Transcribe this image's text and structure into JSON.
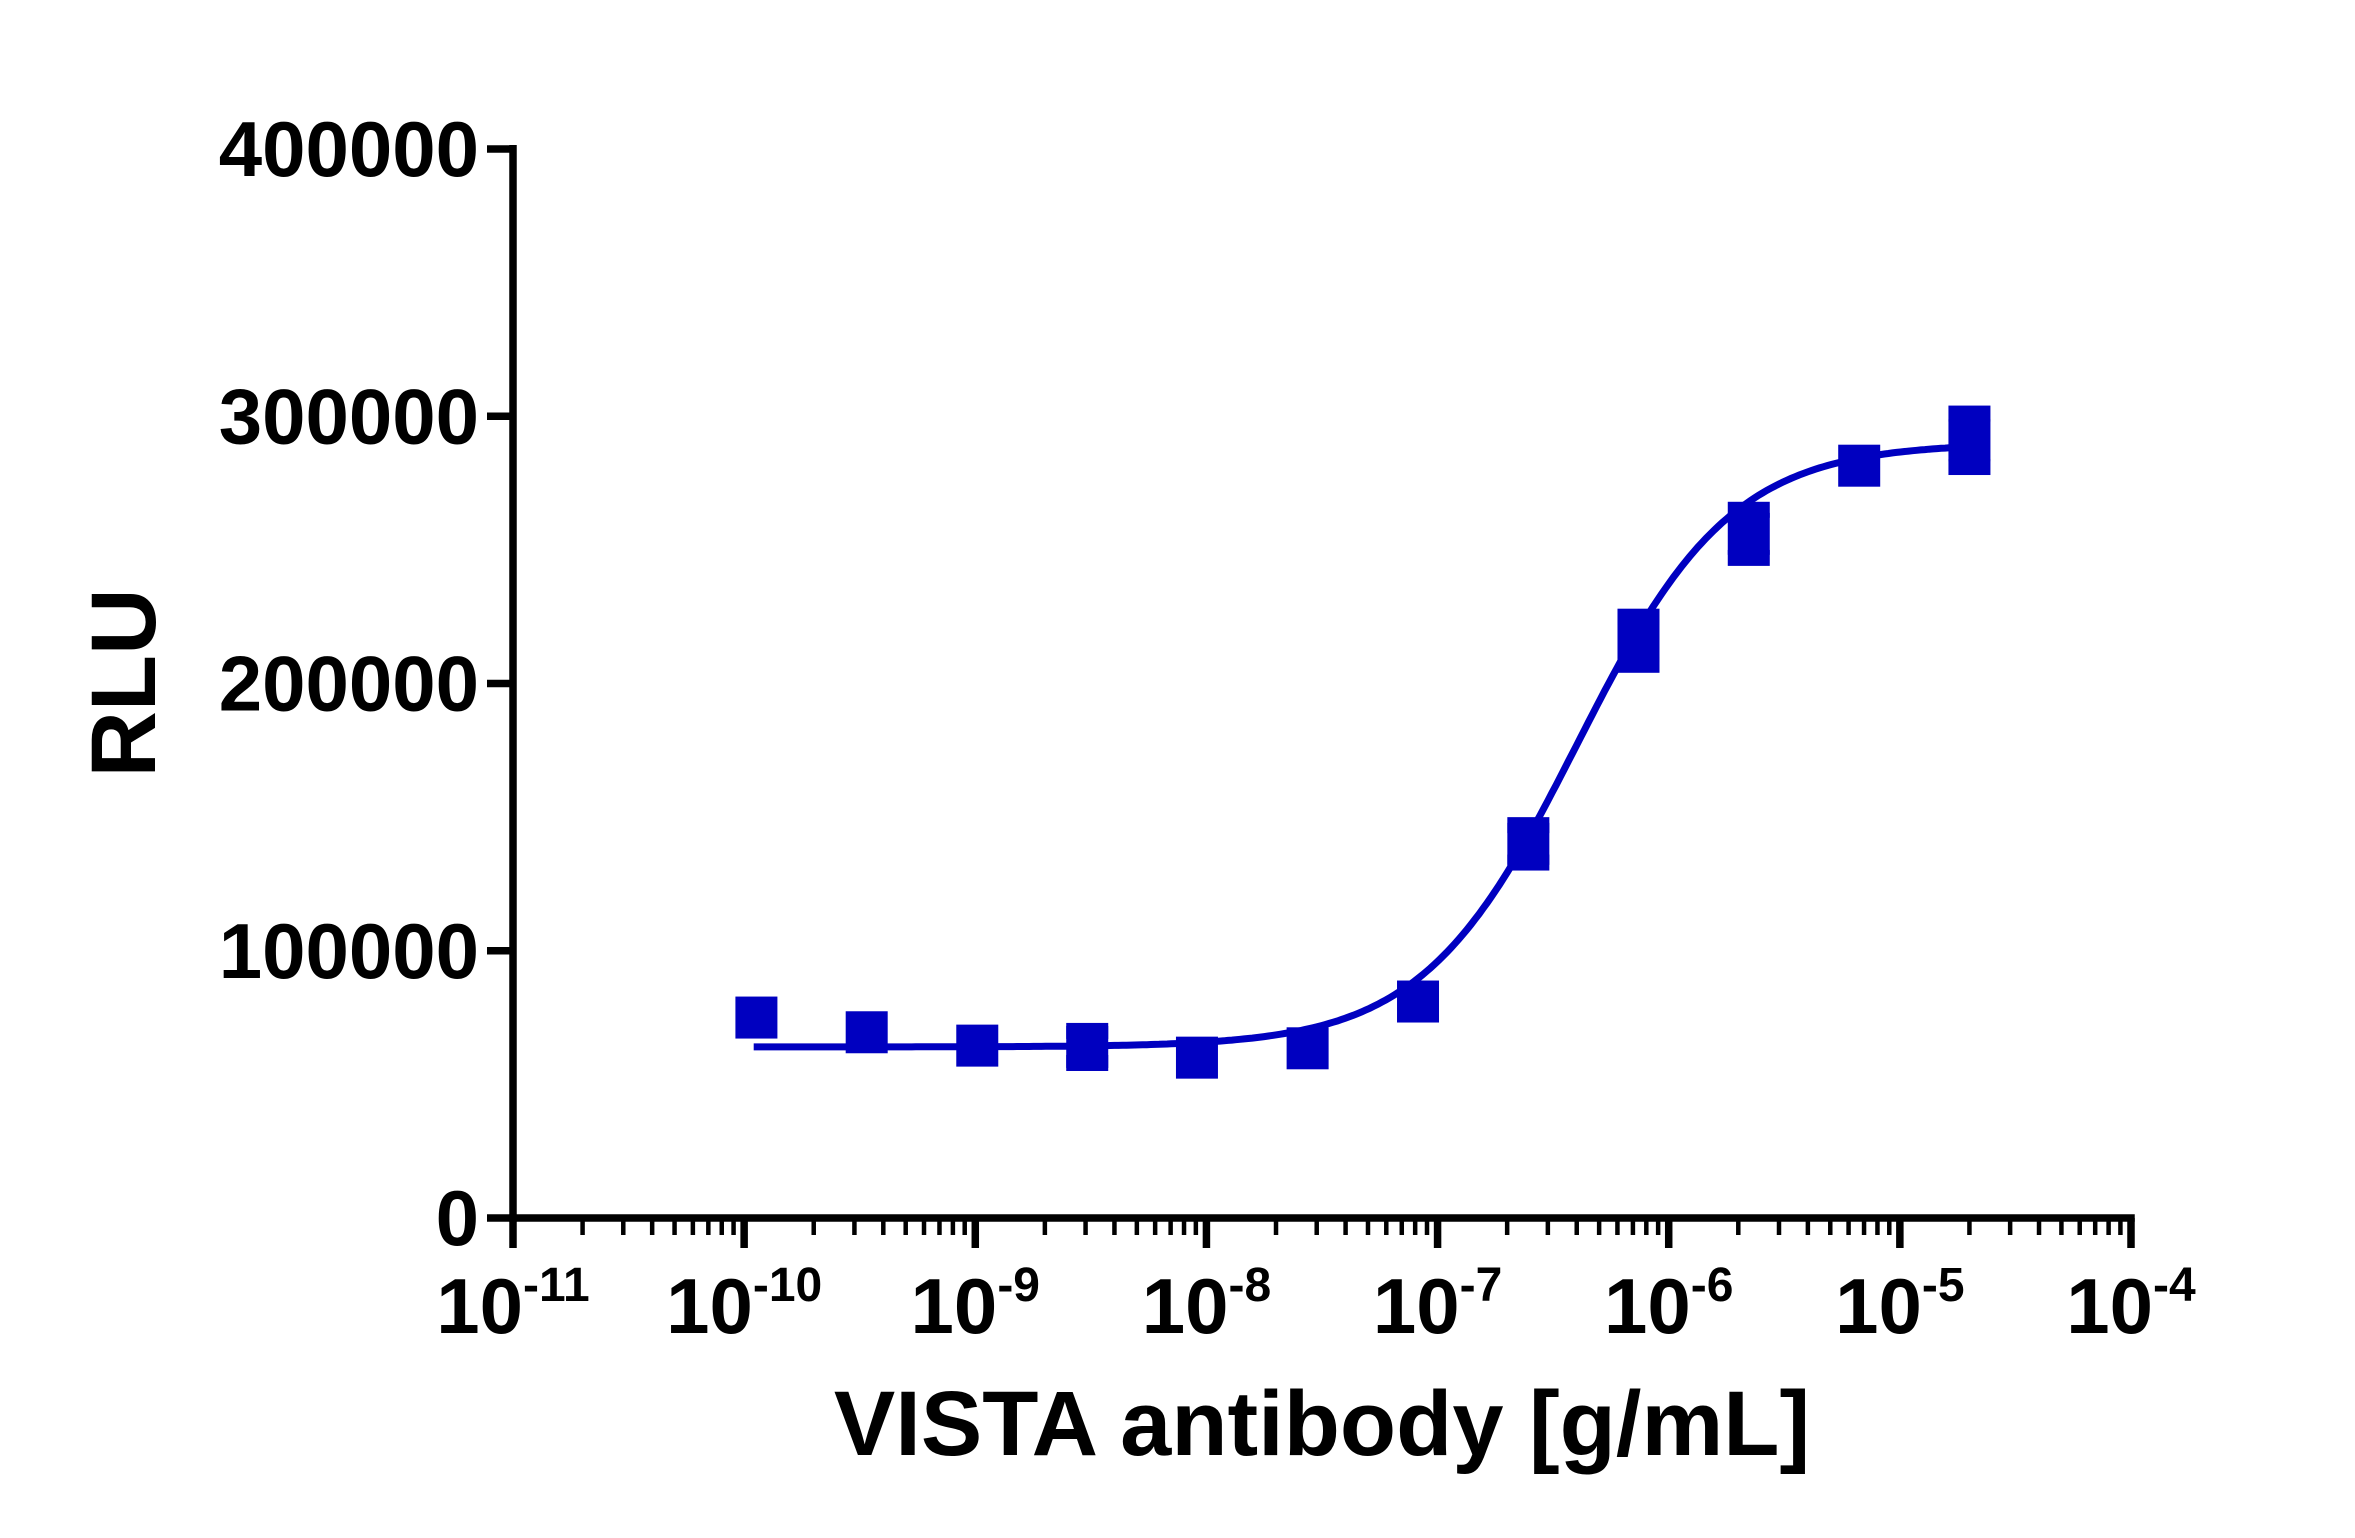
{
  "chart_data": {
    "type": "scatter",
    "title": "",
    "xlabel": "VISTA antibody [g/mL]",
    "ylabel": "RLU",
    "xscale": "log",
    "xlim": [
      1e-11,
      0.0001
    ],
    "ylim": [
      0,
      400000
    ],
    "x_ticks": [
      {
        "base": "10",
        "exp": "-11",
        "value": 1e-11
      },
      {
        "base": "10",
        "exp": "-10",
        "value": 1e-10
      },
      {
        "base": "10",
        "exp": "-9",
        "value": 1e-09
      },
      {
        "base": "10",
        "exp": "-8",
        "value": 1e-08
      },
      {
        "base": "10",
        "exp": "-7",
        "value": 1e-07
      },
      {
        "base": "10",
        "exp": "-6",
        "value": 1e-06
      },
      {
        "base": "10",
        "exp": "-5",
        "value": 1e-05
      },
      {
        "base": "10",
        "exp": "-4",
        "value": 0.0001
      }
    ],
    "y_ticks": [
      "0",
      "100000",
      "200000",
      "300000",
      "400000"
    ],
    "grid": false,
    "marker": "square",
    "color": "#0000c0",
    "points": [
      {
        "x": 1.13e-10,
        "y": 75000,
        "yerr": 0
      },
      {
        "x": 3.39e-10,
        "y": 69500,
        "yerr": 0
      },
      {
        "x": 1.02e-09,
        "y": 64500,
        "yerr": 0
      },
      {
        "x": 3.05e-09,
        "y": 64000,
        "yerr": 6000
      },
      {
        "x": 9.1e-09,
        "y": 60000,
        "yerr": 0
      },
      {
        "x": 2.74e-08,
        "y": 63500,
        "yerr": 0
      },
      {
        "x": 8.23e-08,
        "y": 81000,
        "yerr": 0
      },
      {
        "x": 2.47e-07,
        "y": 140000,
        "yerr": 7000
      },
      {
        "x": 7.4e-07,
        "y": 216000,
        "yerr": 9000
      },
      {
        "x": 2.22e-06,
        "y": 256000,
        "yerr": 9000
      },
      {
        "x": 6.67e-06,
        "y": 281500,
        "yerr": 0
      },
      {
        "x": 2e-05,
        "y": 291000,
        "yerr": 10000
      }
    ],
    "fit_curve": {
      "model": "4PL",
      "bottom": 64000,
      "top": 290000,
      "ec50": 4e-07,
      "hill": 1.3,
      "x_range": [
        1.1e-10,
        2e-05
      ]
    }
  }
}
